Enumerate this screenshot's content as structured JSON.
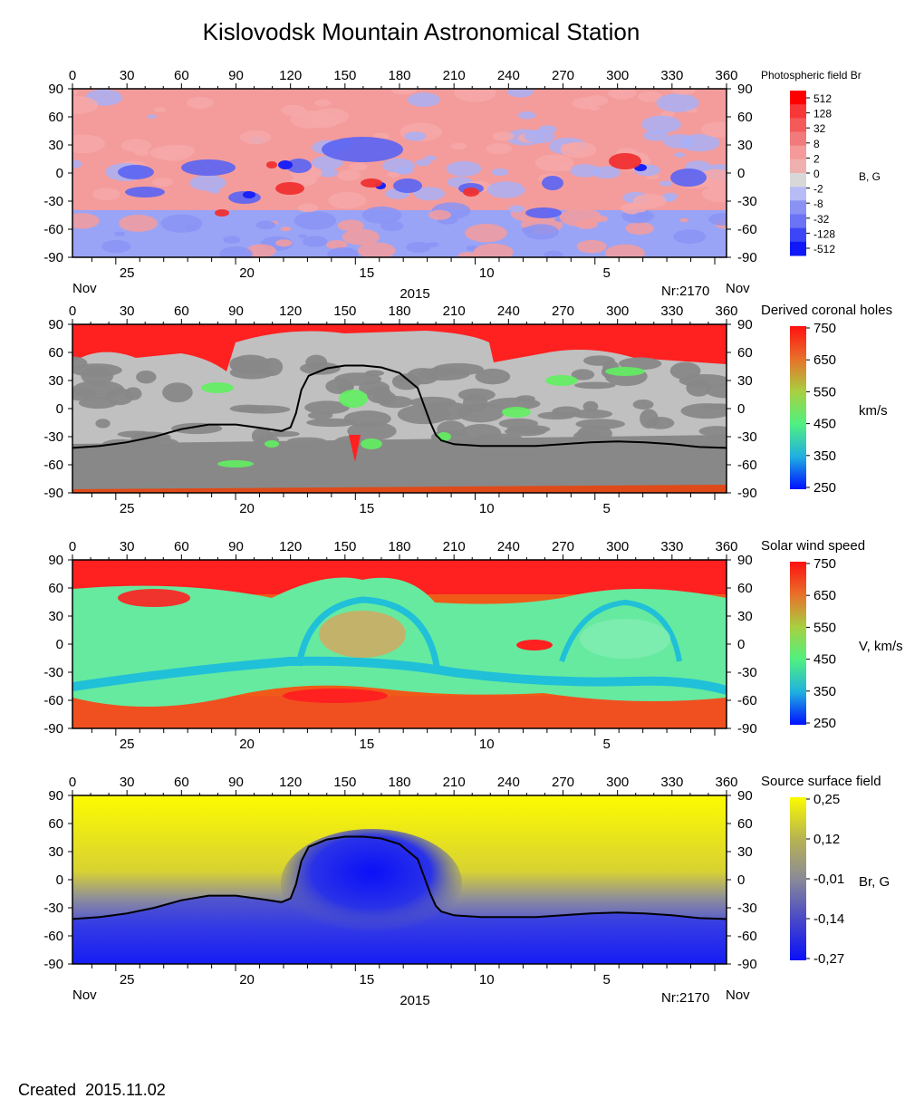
{
  "page": {
    "title": "Kislovodsk Mountain Astronomical Station",
    "created_label": "Created",
    "created_date": "2015.11.02"
  },
  "colors": {
    "red": "#ff2020",
    "pink": "#f6a0a0",
    "light_gray": "#c0c0c0",
    "dark_gray": "#888888",
    "green": "#60f060",
    "cyan": "#20c0d8",
    "blue": "#0a10f8",
    "yellow": "#fdfb00",
    "orange_red": "#e04a18",
    "neutral_line": "#000000"
  },
  "chart_data": [
    {
      "id": "photospheric",
      "type": "heatmap",
      "title": "Photospheric field Br",
      "unit": "B, G",
      "xlim": [
        0,
        360
      ],
      "ylim": [
        -90,
        90
      ],
      "x_ticks": [
        0,
        30,
        60,
        90,
        120,
        150,
        180,
        210,
        240,
        270,
        300,
        330,
        360
      ],
      "y_ticks": [
        90,
        60,
        30,
        0,
        -30,
        -60,
        -90
      ],
      "date_ticks": [
        {
          "day": "25",
          "lon": 30
        },
        {
          "day": "20",
          "lon": 96
        },
        {
          "day": "15",
          "lon": 162
        },
        {
          "day": "10",
          "lon": 228
        },
        {
          "day": "5",
          "lon": 294
        }
      ],
      "bottom_left": "Nov",
      "bottom_center": "2015",
      "bottom_right_nr": "Nr:2170",
      "bottom_right": "Nov",
      "colorbar_labels": [
        "512",
        "128",
        "32",
        "8",
        "2",
        "0",
        "-2",
        "-8",
        "-32",
        "-128",
        "-512"
      ],
      "colorbar_colors": [
        "#ff0000",
        "#f83838",
        "#f45a5a",
        "#f27a7a",
        "#f49a9a",
        "#f0b0b0",
        "#d8d8d8",
        "#b8bcf6",
        "#8a92f4",
        "#6a74f4",
        "#3c46f6",
        "#1018fa"
      ],
      "has_neutral_line": false
    },
    {
      "id": "coronal_holes",
      "type": "heatmap",
      "title": "Derived coronal holes",
      "unit": "km/s",
      "xlim": [
        0,
        360
      ],
      "ylim": [
        -90,
        90
      ],
      "x_ticks": [
        0,
        30,
        60,
        90,
        120,
        150,
        180,
        210,
        240,
        270,
        300,
        330,
        360
      ],
      "y_ticks": [
        90,
        60,
        30,
        0,
        -30,
        -60,
        -90
      ],
      "date_ticks": [
        {
          "day": "25",
          "lon": 30
        },
        {
          "day": "20",
          "lon": 96
        },
        {
          "day": "15",
          "lon": 162
        },
        {
          "day": "10",
          "lon": 228
        },
        {
          "day": "5",
          "lon": 294
        }
      ],
      "colorbar_labels": [
        "750",
        "650",
        "550",
        "450",
        "350",
        "250"
      ],
      "colorbar_colors": [
        "#ff1010",
        "#e8702a",
        "#a8d040",
        "#50f080",
        "#20b0e0",
        "#0010ff"
      ],
      "has_neutral_line": true
    },
    {
      "id": "solar_wind",
      "type": "heatmap",
      "title": "Solar wind speed",
      "unit": "V, km/s",
      "xlim": [
        0,
        360
      ],
      "ylim": [
        -90,
        90
      ],
      "x_ticks": [
        0,
        30,
        60,
        90,
        120,
        150,
        180,
        210,
        240,
        270,
        300,
        330,
        360
      ],
      "y_ticks": [
        90,
        60,
        30,
        0,
        -30,
        -60,
        -90
      ],
      "date_ticks": [
        {
          "day": "25",
          "lon": 30
        },
        {
          "day": "20",
          "lon": 96
        },
        {
          "day": "15",
          "lon": 162
        },
        {
          "day": "10",
          "lon": 228
        },
        {
          "day": "5",
          "lon": 294
        }
      ],
      "colorbar_labels": [
        "750",
        "650",
        "550",
        "450",
        "350",
        "250"
      ],
      "colorbar_colors": [
        "#ff1010",
        "#e8702a",
        "#a8d040",
        "#50f080",
        "#20b0e0",
        "#0010ff"
      ],
      "has_neutral_line": false
    },
    {
      "id": "source_surface",
      "type": "heatmap",
      "title": "Source surface field",
      "unit": "Br, G",
      "xlim": [
        0,
        360
      ],
      "ylim": [
        -90,
        90
      ],
      "x_ticks": [
        0,
        30,
        60,
        90,
        120,
        150,
        180,
        210,
        240,
        270,
        300,
        330,
        360
      ],
      "y_ticks": [
        90,
        60,
        30,
        0,
        -30,
        -60,
        -90
      ],
      "date_ticks": [
        {
          "day": "25",
          "lon": 30
        },
        {
          "day": "20",
          "lon": 96
        },
        {
          "day": "15",
          "lon": 162
        },
        {
          "day": "10",
          "lon": 228
        },
        {
          "day": "5",
          "lon": 294
        }
      ],
      "bottom_left": "Nov",
      "bottom_center": "2015",
      "bottom_right_nr": "Nr:2170",
      "bottom_right": "Nov",
      "colorbar_labels": [
        "0,25",
        "0,12",
        "-0,01",
        "-0,14",
        "-0,27"
      ],
      "colorbar_colors": [
        "#fdfb00",
        "#b8b450",
        "#8a8a98",
        "#4848c8",
        "#0a10f8"
      ],
      "has_neutral_line": true
    }
  ],
  "neutral_line": {
    "lon": [
      0,
      15,
      30,
      45,
      60,
      75,
      90,
      105,
      115,
      120,
      123,
      126,
      130,
      140,
      150,
      160,
      170,
      180,
      190,
      197,
      200,
      203,
      210,
      225,
      240,
      255,
      270,
      285,
      300,
      315,
      330,
      345,
      360
    ],
    "lat": [
      -42,
      -40,
      -36,
      -30,
      -22,
      -17,
      -17,
      -21,
      -24,
      -20,
      -5,
      20,
      35,
      43,
      46,
      46,
      44,
      38,
      22,
      -15,
      -28,
      -34,
      -38,
      -40,
      -40,
      -40,
      -38,
      -36,
      -35,
      -36,
      -38,
      -41,
      -42
    ]
  }
}
